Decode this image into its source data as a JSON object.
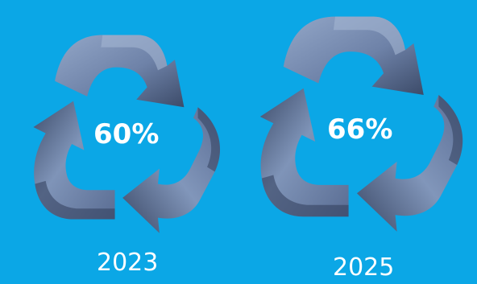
{
  "panels": [
    {
      "percent": "60%",
      "percent_value": 60,
      "year": "2023"
    },
    {
      "percent": "66%",
      "percent_value": 66,
      "year": "2025"
    }
  ],
  "colors": {
    "background": "#0ba7e6",
    "arrow_light": "#8498bb",
    "arrow_mid": "#5d7098",
    "arrow_dark": "#2f3d57",
    "text": "#ffffff"
  },
  "icons": [
    "recycle-icon"
  ]
}
